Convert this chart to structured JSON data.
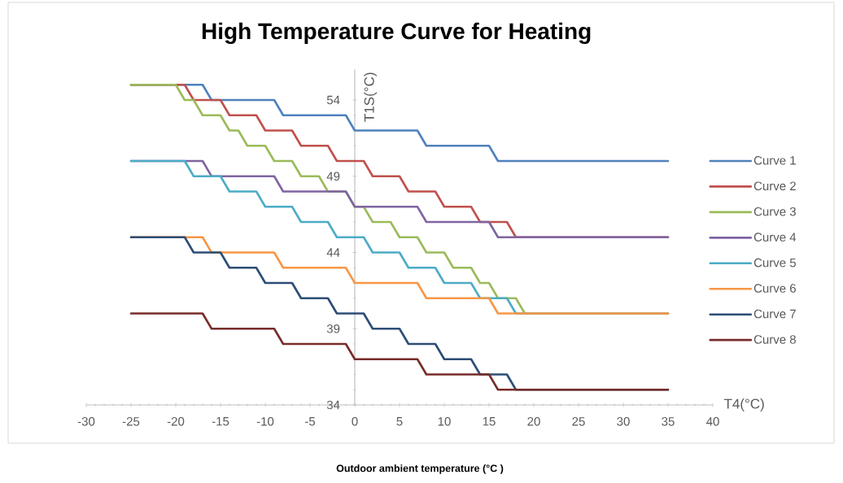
{
  "chart_data": {
    "type": "line",
    "title": "High Temperature Curve for Heating",
    "xlabel": "T4(°C)",
    "ylabel": "T1S(°C)",
    "annotations": [
      "Outdoor ambient temperature (°C )"
    ],
    "xlim": [
      -30,
      40
    ],
    "ylim": [
      34,
      56
    ],
    "xticks": [
      -30,
      -25,
      -20,
      -15,
      -10,
      -5,
      0,
      5,
      10,
      15,
      20,
      25,
      30,
      35,
      40
    ],
    "yticks": [
      34,
      39,
      44,
      49,
      54
    ],
    "legend": "right",
    "line_style": "solid",
    "series": [
      {
        "name": "Curve 1",
        "color": "#4f81bd",
        "x": [
          -25,
          -17,
          -16,
          -9,
          -8,
          -1,
          0,
          7,
          8,
          15,
          16,
          35
        ],
        "values": [
          55,
          55,
          54,
          54,
          53,
          53,
          52,
          52,
          51,
          51,
          50,
          50
        ]
      },
      {
        "name": "Curve 2",
        "color": "#c0504d",
        "x": [
          -25,
          -19,
          -18,
          -15,
          -14,
          -11,
          -10,
          -7,
          -6,
          -3,
          -2,
          1,
          2,
          5,
          6,
          9,
          10,
          13,
          14,
          17,
          18,
          35
        ],
        "values": [
          55,
          55,
          54,
          54,
          53,
          53,
          52,
          52,
          51,
          51,
          50,
          50,
          49,
          49,
          48,
          48,
          47,
          47,
          46,
          46,
          45,
          45
        ]
      },
      {
        "name": "Curve 3",
        "color": "#9bbb59",
        "x": [
          -25,
          -20,
          -19,
          -18,
          -17,
          -15,
          -14,
          -13,
          -12,
          -10,
          -9,
          -7,
          -6,
          -4,
          -3,
          -1,
          0,
          1,
          2,
          4,
          5,
          7,
          8,
          10,
          11,
          13,
          14,
          15,
          16,
          18,
          19,
          35
        ],
        "values": [
          55,
          55,
          54,
          54,
          53,
          53,
          52,
          52,
          51,
          51,
          50,
          50,
          49,
          49,
          48,
          48,
          47,
          47,
          46,
          46,
          45,
          45,
          44,
          44,
          43,
          43,
          42,
          42,
          41,
          41,
          40,
          40
        ]
      },
      {
        "name": "Curve 4",
        "color": "#8064a2",
        "x": [
          -25,
          -17,
          -16,
          -9,
          -8,
          -1,
          0,
          7,
          8,
          15,
          16,
          35
        ],
        "values": [
          50,
          50,
          49,
          49,
          48,
          48,
          47,
          47,
          46,
          46,
          45,
          45
        ]
      },
      {
        "name": "Curve 5",
        "color": "#4bacc6",
        "x": [
          -25,
          -19,
          -18,
          -15,
          -14,
          -11,
          -10,
          -7,
          -6,
          -3,
          -2,
          1,
          2,
          5,
          6,
          9,
          10,
          13,
          14,
          17,
          18,
          35
        ],
        "values": [
          50,
          50,
          49,
          49,
          48,
          48,
          47,
          47,
          46,
          46,
          45,
          45,
          44,
          44,
          43,
          43,
          42,
          42,
          41,
          41,
          40,
          40
        ]
      },
      {
        "name": "Curve 6",
        "color": "#f79646",
        "x": [
          -25,
          -17,
          -16,
          -9,
          -8,
          -1,
          0,
          7,
          8,
          15,
          16,
          35
        ],
        "values": [
          45,
          45,
          44,
          44,
          43,
          43,
          42,
          42,
          41,
          41,
          40,
          40
        ]
      },
      {
        "name": "Curve 7",
        "color": "#2c4d75",
        "x": [
          -25,
          -19,
          -18,
          -15,
          -14,
          -11,
          -10,
          -7,
          -6,
          -3,
          -2,
          1,
          2,
          5,
          6,
          9,
          10,
          13,
          14,
          17,
          18,
          35
        ],
        "values": [
          45,
          45,
          44,
          44,
          43,
          43,
          42,
          42,
          41,
          41,
          40,
          40,
          39,
          39,
          38,
          38,
          37,
          37,
          36,
          36,
          35,
          35
        ]
      },
      {
        "name": "Curve 8",
        "color": "#772c2a",
        "x": [
          -25,
          -17,
          -16,
          -9,
          -8,
          -1,
          0,
          7,
          8,
          15,
          16,
          35
        ],
        "values": [
          40,
          40,
          39,
          39,
          38,
          38,
          37,
          37,
          36,
          36,
          35,
          35
        ]
      }
    ]
  }
}
